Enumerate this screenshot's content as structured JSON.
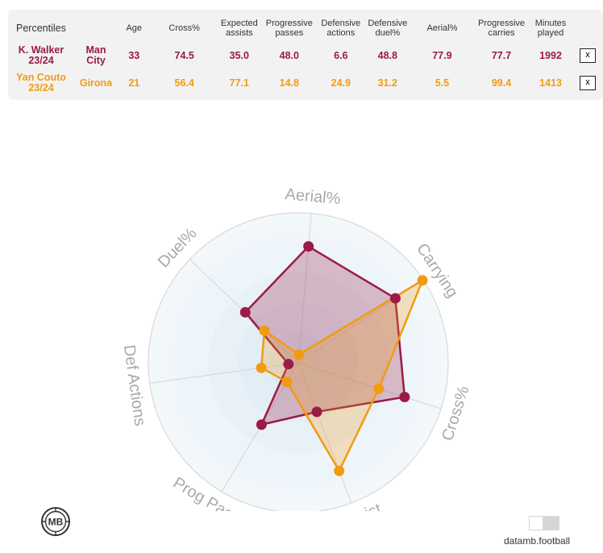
{
  "table": {
    "header_label": "Percentiles",
    "columns": [
      "Age",
      "Cross%",
      "Expected assists",
      "Progressive passes",
      "Defensive actions",
      "Defensive duel%",
      "Aerial%",
      "Progressive carries",
      "Minutes played"
    ],
    "rows": [
      {
        "player": "K. Walker 23/24",
        "team": "Man City",
        "values": [
          "33",
          "74.5",
          "35.0",
          "48.0",
          "6.6",
          "48.8",
          "77.9",
          "77.7",
          "1992"
        ],
        "remove": "x",
        "color": "#9b1b44"
      },
      {
        "player": "Yan Couto 23/24",
        "team": "Girona",
        "values": [
          "21",
          "56.4",
          "77.1",
          "14.8",
          "24.9",
          "31.2",
          "5.5",
          "99.4",
          "1413"
        ],
        "remove": "x",
        "color": "#f29b12"
      }
    ]
  },
  "chart_data": {
    "type": "radar",
    "axes": [
      "Aerial%",
      "Carrying",
      "Cross%",
      "xAssist",
      "Prog Passes",
      "Def Actions",
      "Duel%"
    ],
    "range": [
      0,
      100
    ],
    "series": [
      {
        "name": "K. Walker 23/24",
        "color": "#9b1b44",
        "values": [
          77.9,
          77.7,
          74.5,
          35.0,
          48.0,
          6.6,
          48.8
        ]
      },
      {
        "name": "Yan Couto 23/24",
        "color": "#f29b12",
        "values": [
          5.5,
          99.4,
          56.4,
          77.1,
          14.8,
          24.9,
          31.2
        ]
      }
    ]
  },
  "footer": {
    "logo_text": "MB",
    "brand": "datamb.football"
  }
}
